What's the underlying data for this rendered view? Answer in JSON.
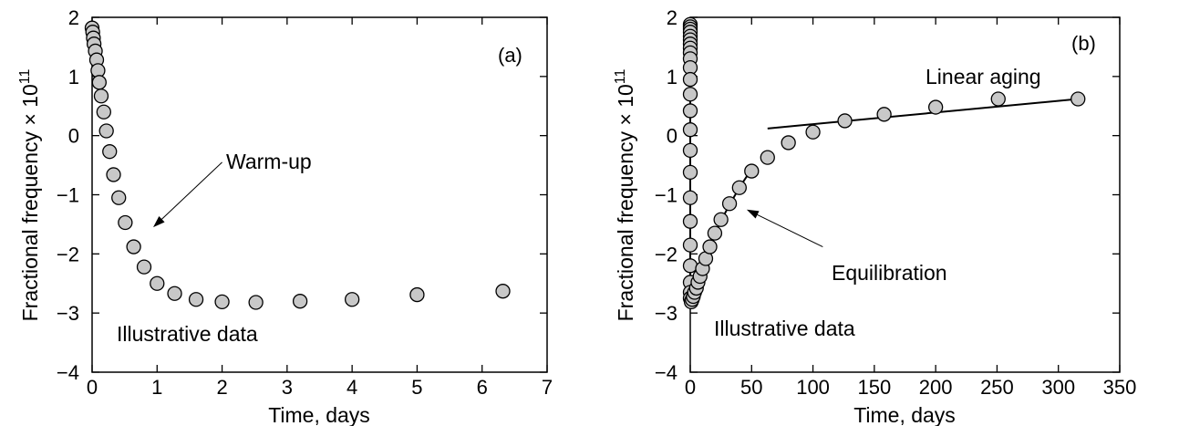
{
  "chart_data": [
    {
      "panel": "(a)",
      "type": "scatter",
      "xlabel": "Time, days",
      "ylabel_text": "Fractional frequency × 10",
      "ylabel_sup": "11",
      "xlim": [
        0,
        7
      ],
      "ylim": [
        -4,
        2
      ],
      "xticks": [
        0,
        1,
        2,
        3,
        4,
        5,
        6,
        7
      ],
      "yticks": [
        2,
        1,
        0,
        -1,
        -2,
        -3,
        -4
      ],
      "ytick_labels": [
        "2",
        "1",
        "0",
        "−1",
        "−2",
        "−3",
        "−4"
      ],
      "grid": false,
      "series": [
        {
          "x": [
            0.0,
            0.01,
            0.02,
            0.03,
            0.05,
            0.07,
            0.09,
            0.11,
            0.14,
            0.18,
            0.22,
            0.27,
            0.33,
            0.41,
            0.51,
            0.64,
            0.8,
            1.0,
            1.27,
            1.6,
            2.0,
            2.52,
            3.2,
            4.0,
            5.0,
            6.32
          ],
          "y": [
            1.82,
            1.75,
            1.65,
            1.55,
            1.43,
            1.28,
            1.1,
            0.9,
            0.67,
            0.4,
            0.08,
            -0.27,
            -0.66,
            -1.05,
            -1.47,
            -1.88,
            -2.22,
            -2.5,
            -2.67,
            -2.77,
            -2.81,
            -2.82,
            -2.8,
            -2.77,
            -2.69,
            -2.63
          ]
        }
      ],
      "annotations": [
        {
          "text": "Warm-up",
          "arrow_from": [
            2.0,
            -0.45
          ],
          "arrow_to": [
            0.94,
            -1.55
          ]
        },
        {
          "text": "Illustrative data",
          "at": [
            0.4,
            -3.3
          ]
        }
      ]
    },
    {
      "panel": "(b)",
      "type": "scatter",
      "xlabel": "Time, days",
      "ylabel_text": "Fractional frequency × 10",
      "ylabel_sup": "11",
      "xlim": [
        0,
        350
      ],
      "ylim": [
        -4,
        2
      ],
      "xticks": [
        0,
        50,
        100,
        150,
        200,
        250,
        300,
        350
      ],
      "yticks": [
        2,
        1,
        0,
        -1,
        -2,
        -3,
        -4
      ],
      "ytick_labels": [
        "2",
        "1",
        "0",
        "−1",
        "−2",
        "−3",
        "−4"
      ],
      "grid": false,
      "series": [
        {
          "x": [
            0,
            0,
            0,
            0,
            0,
            0,
            0,
            0,
            0,
            0,
            0,
            0,
            0,
            0,
            0,
            0,
            0,
            0,
            0,
            0,
            0,
            0,
            0,
            0,
            0.8,
            1.6,
            2.5,
            3.5,
            5.0,
            6.3,
            8.0,
            10.0,
            12.6,
            16.0,
            20.0,
            25.0,
            32.0,
            40.0,
            50.0,
            63.0,
            80.0,
            100.0,
            126.0,
            158.0,
            200.0,
            251.0,
            316.0
          ],
          "y": [
            1.88,
            1.84,
            1.8,
            1.75,
            1.68,
            1.62,
            1.55,
            1.48,
            1.4,
            1.3,
            1.15,
            0.95,
            0.7,
            0.42,
            0.1,
            -0.25,
            -0.62,
            -1.05,
            -1.45,
            -1.85,
            -2.2,
            -2.48,
            -2.65,
            -2.75,
            -2.81,
            -2.77,
            -2.72,
            -2.65,
            -2.58,
            -2.48,
            -2.38,
            -2.25,
            -2.08,
            -1.88,
            -1.65,
            -1.42,
            -1.15,
            -0.88,
            -0.6,
            -0.37,
            -0.12,
            0.06,
            0.25,
            0.36,
            0.48,
            0.62,
            0.62
          ]
        }
      ],
      "lines": [
        {
          "name": "warmup-curve",
          "x": [
            0,
            0
          ],
          "y": [
            1.9,
            -2.85
          ]
        },
        {
          "name": "equilibration-curve",
          "x": [
            0.0,
            1.0,
            2.5,
            4.0,
            6.0,
            8.0,
            10.0,
            12.6,
            16.0,
            20.0,
            25.0,
            32.0,
            40.0,
            47.0
          ],
          "y": [
            -2.85,
            -2.78,
            -2.72,
            -2.64,
            -2.52,
            -2.4,
            -2.27,
            -2.1,
            -1.9,
            -1.68,
            -1.44,
            -1.17,
            -0.88,
            -0.66
          ]
        },
        {
          "name": "linear-aging-line",
          "x": [
            63,
            316
          ],
          "y": [
            0.12,
            0.62
          ]
        }
      ],
      "annotations": [
        {
          "text": "Linear aging",
          "at": [
            175,
            0.9
          ]
        },
        {
          "text": "Equilibration",
          "arrow_from": [
            108,
            -1.88
          ],
          "arrow_to": [
            46,
            -1.25
          ]
        },
        {
          "text": "Illustrative data",
          "at": [
            20,
            -3.3
          ]
        }
      ]
    }
  ]
}
